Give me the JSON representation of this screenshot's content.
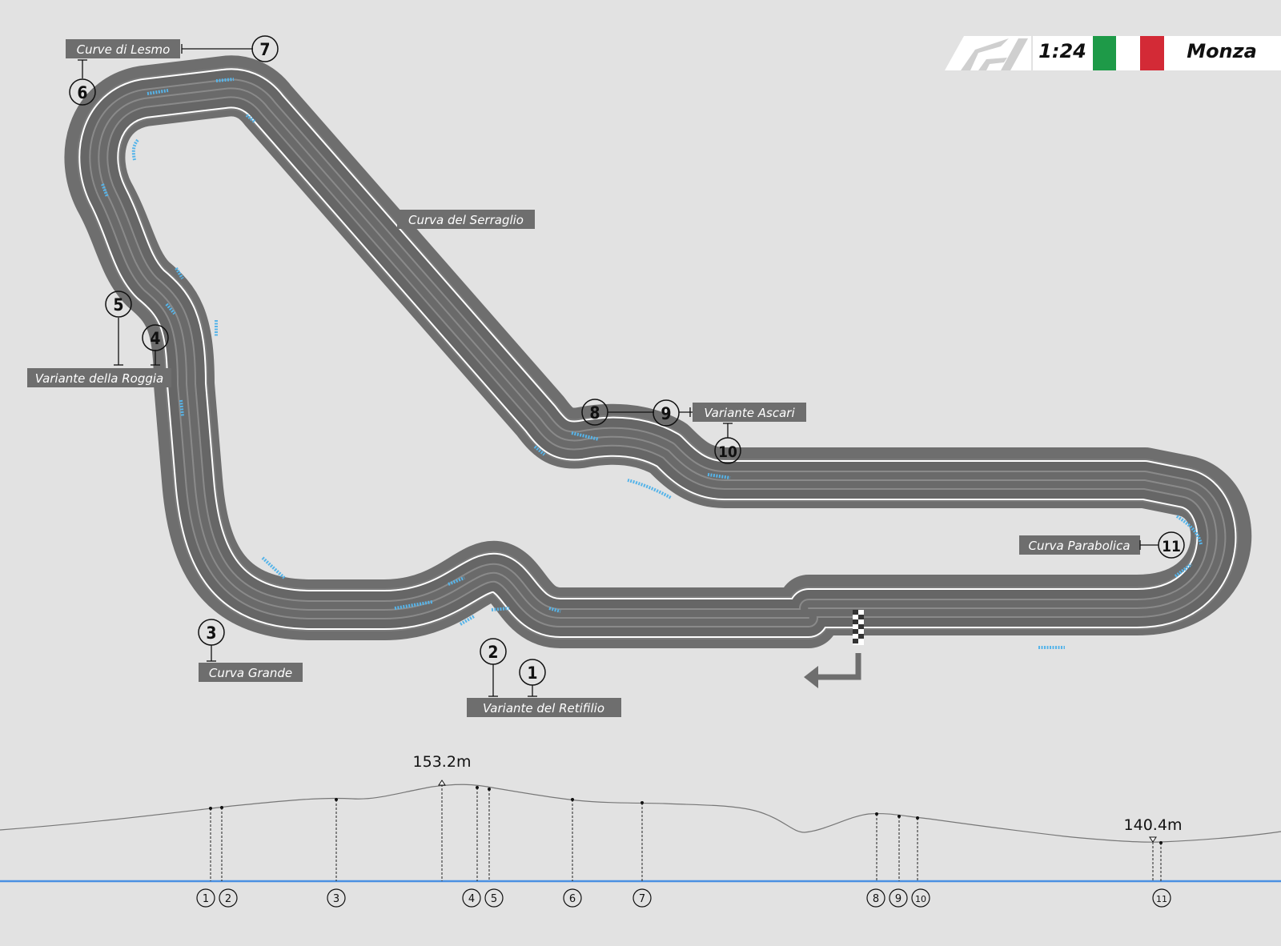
{
  "header": {
    "scale": "1:24",
    "circuit_name": "Monza",
    "logo": "f1-logo",
    "flag_colors": [
      "#1e9a48",
      "#ffffff",
      "#d32a36"
    ]
  },
  "corner_labels": [
    {
      "id": "lesmo",
      "text": "Curve di Lesmo"
    },
    {
      "id": "serraglio",
      "text": "Curva del Serraglio"
    },
    {
      "id": "roggia",
      "text": "Variante della Roggia"
    },
    {
      "id": "ascari",
      "text": "Variante Ascari"
    },
    {
      "id": "parabolica",
      "text": "Curva Parabolica"
    },
    {
      "id": "grande",
      "text": "Curva Grande"
    },
    {
      "id": "retifilio",
      "text": "Variante del Retifilio"
    }
  ],
  "corner_numbers": [
    "1",
    "2",
    "3",
    "4",
    "5",
    "6",
    "7",
    "8",
    "9",
    "10",
    "11"
  ],
  "elevation": {
    "max_label": "153.2m",
    "min_label": "140.4m",
    "marker_numbers": [
      "1",
      "2",
      "3",
      "4",
      "5",
      "6",
      "7",
      "8",
      "9",
      "10",
      "11"
    ]
  },
  "colors": {
    "background": "#e2e2e2",
    "track_surface": "#6e6e6e",
    "track_lines": "#ffffff",
    "kerb": "#56b4e9",
    "label_box": "#6e6e6e",
    "baseline": "#4a90e2"
  }
}
